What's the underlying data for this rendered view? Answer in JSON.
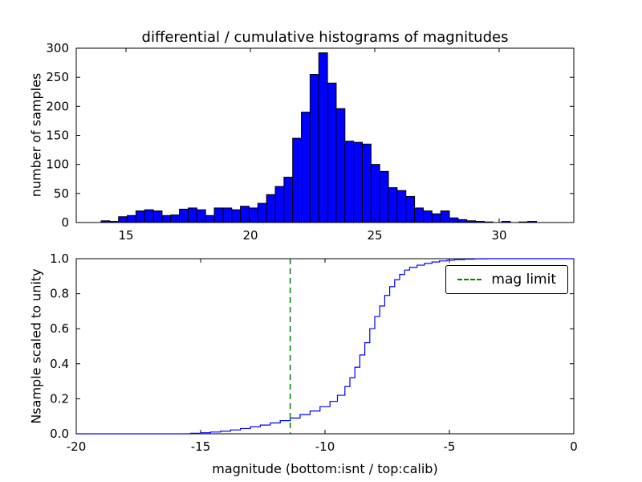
{
  "figure": {
    "background": "#ffffff",
    "frame_color": "#000000"
  },
  "chart_data": [
    {
      "type": "bar",
      "subplot": "top",
      "title": "differential / cumulative histograms of magnitudes",
      "xlabel": "",
      "ylabel": "number of samples",
      "xlim": [
        13,
        33
      ],
      "ylim": [
        0,
        300
      ],
      "xticks": [
        15,
        20,
        25,
        30
      ],
      "yticks": [
        0,
        50,
        100,
        150,
        200,
        250,
        300
      ],
      "grid": false,
      "bar_color": "#0000ff",
      "bar_edge_color": "#000000",
      "bin_start": 14.0,
      "bin_width": 0.35,
      "counts": [
        3,
        2,
        10,
        12,
        20,
        22,
        20,
        12,
        13,
        23,
        25,
        22,
        12,
        25,
        25,
        22,
        28,
        25,
        33,
        48,
        62,
        78,
        145,
        190,
        255,
        292,
        240,
        196,
        140,
        138,
        135,
        100,
        88,
        60,
        55,
        45,
        25,
        20,
        15,
        20,
        8,
        5,
        3,
        2,
        1,
        0,
        2,
        0,
        1,
        2
      ]
    },
    {
      "type": "line",
      "subplot": "bottom",
      "title": "",
      "xlabel": "magnitude (bottom:isnt / top:calib)",
      "ylabel": "Nsample scaled to unity",
      "xlim": [
        -20,
        0
      ],
      "ylim": [
        0,
        1
      ],
      "xticks": [
        -20,
        -15,
        -10,
        -5,
        0
      ],
      "yticks": [
        0.0,
        0.2,
        0.4,
        0.6,
        0.8,
        1.0
      ],
      "ytick_labels": [
        "0.0",
        "0.2",
        "0.4",
        "0.6",
        "0.8",
        "1.0"
      ],
      "grid": false,
      "line_color": "#0000ff",
      "step": true,
      "points": [
        [
          -20,
          0
        ],
        [
          -16,
          0
        ],
        [
          -15.4,
          0.003
        ],
        [
          -15,
          0.006
        ],
        [
          -14.6,
          0.01
        ],
        [
          -14.2,
          0.015
        ],
        [
          -13.8,
          0.022
        ],
        [
          -13.4,
          0.03
        ],
        [
          -13,
          0.04
        ],
        [
          -12.6,
          0.05
        ],
        [
          -12.2,
          0.062
        ],
        [
          -11.8,
          0.075
        ],
        [
          -11.4,
          0.09
        ],
        [
          -11,
          0.11
        ],
        [
          -10.6,
          0.13
        ],
        [
          -10.2,
          0.155
        ],
        [
          -9.8,
          0.185
        ],
        [
          -9.5,
          0.22
        ],
        [
          -9.2,
          0.27
        ],
        [
          -9,
          0.32
        ],
        [
          -8.8,
          0.38
        ],
        [
          -8.6,
          0.45
        ],
        [
          -8.4,
          0.52
        ],
        [
          -8.2,
          0.6
        ],
        [
          -8,
          0.67
        ],
        [
          -7.8,
          0.73
        ],
        [
          -7.6,
          0.79
        ],
        [
          -7.4,
          0.84
        ],
        [
          -7.2,
          0.88
        ],
        [
          -7,
          0.91
        ],
        [
          -6.8,
          0.935
        ],
        [
          -6.6,
          0.95
        ],
        [
          -6.3,
          0.963
        ],
        [
          -6,
          0.973
        ],
        [
          -5.7,
          0.981
        ],
        [
          -5.4,
          0.987
        ],
        [
          -5.1,
          0.991
        ],
        [
          -4.8,
          0.994
        ],
        [
          -4.4,
          0.997
        ],
        [
          -4,
          0.999
        ],
        [
          -3.5,
          1.0
        ],
        [
          0,
          1.0
        ]
      ],
      "mag_limit": {
        "x": -11.4,
        "color": "#008000",
        "style": "dashed",
        "label": "mag limit"
      },
      "legend": {
        "position": "upper right",
        "entries": [
          "mag limit"
        ]
      }
    }
  ]
}
